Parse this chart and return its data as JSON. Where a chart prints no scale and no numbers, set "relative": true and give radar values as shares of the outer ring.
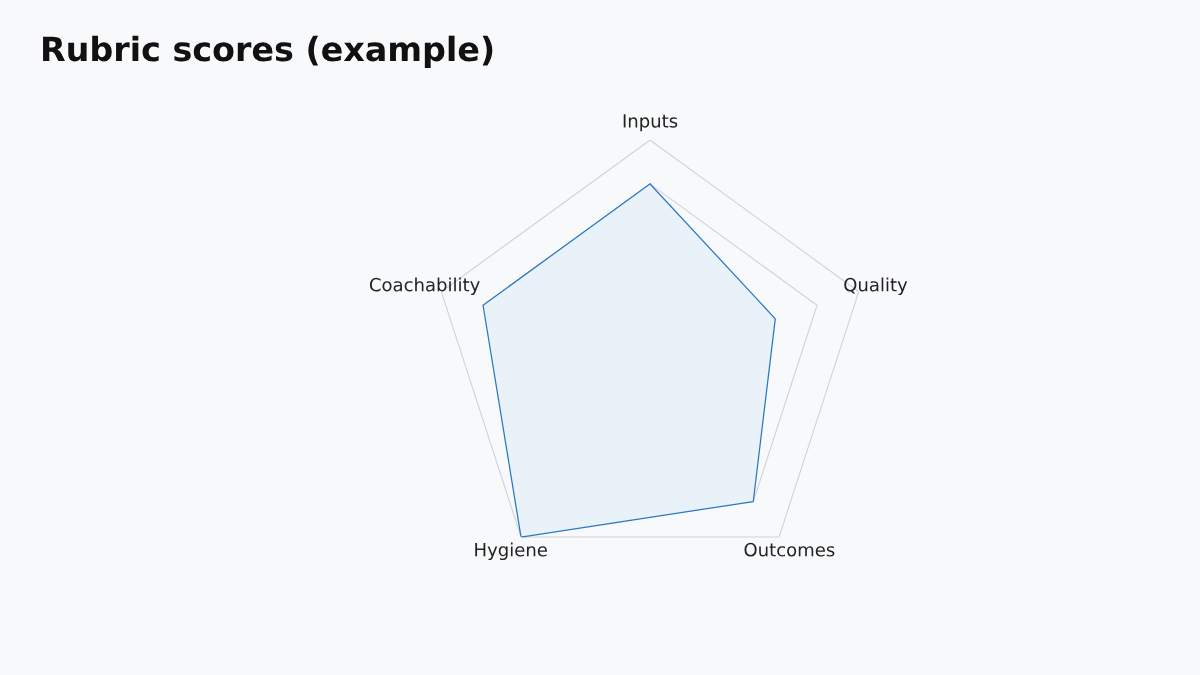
{
  "chart_data": {
    "type": "radar",
    "title": "Rubric scores (example)",
    "categories": [
      "Inputs",
      "Quality",
      "Outcomes",
      "Hygiene",
      "Coachability"
    ],
    "relative": true,
    "series": [
      {
        "color": "#2a78c2",
        "values": [
          0.8,
          0.6,
          0.8,
          1.0,
          0.8
        ]
      }
    ],
    "grid": true
  }
}
